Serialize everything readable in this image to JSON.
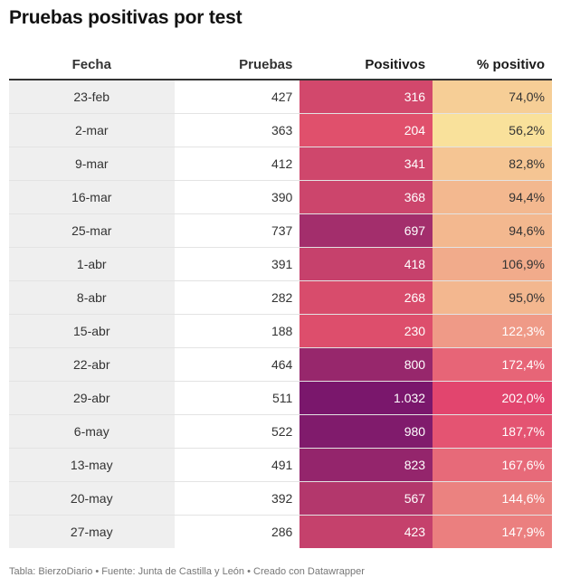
{
  "title": "Pruebas positivas por test",
  "source_note": "Tabla: BierzoDiario • Fuente: Junta de Castilla y León • Creado con Datawrapper",
  "colors": {
    "date_column_bg": "#efefef",
    "positivos_scale": [
      "#e0506c",
      "#7a176c"
    ],
    "pct_scale": [
      "#f9e19b",
      "#e2456e"
    ]
  },
  "chart_data": {
    "type": "table",
    "columns": [
      "Fecha",
      "Pruebas",
      "Positivos",
      "% positivo"
    ],
    "rows": [
      {
        "fecha": "23-feb",
        "pruebas": "427",
        "positivos": "316",
        "pct": "74,0%",
        "positivos_value": 316,
        "pct_value": 74.0
      },
      {
        "fecha": "2-mar",
        "pruebas": "363",
        "positivos": "204",
        "pct": "56,2%",
        "positivos_value": 204,
        "pct_value": 56.2
      },
      {
        "fecha": "9-mar",
        "pruebas": "412",
        "positivos": "341",
        "pct": "82,8%",
        "positivos_value": 341,
        "pct_value": 82.8
      },
      {
        "fecha": "16-mar",
        "pruebas": "390",
        "positivos": "368",
        "pct": "94,4%",
        "positivos_value": 368,
        "pct_value": 94.4
      },
      {
        "fecha": "25-mar",
        "pruebas": "737",
        "positivos": "697",
        "pct": "94,6%",
        "positivos_value": 697,
        "pct_value": 94.6
      },
      {
        "fecha": "1-abr",
        "pruebas": "391",
        "positivos": "418",
        "pct": "106,9%",
        "positivos_value": 418,
        "pct_value": 106.9
      },
      {
        "fecha": "8-abr",
        "pruebas": "282",
        "positivos": "268",
        "pct": "95,0%",
        "positivos_value": 268,
        "pct_value": 95.0
      },
      {
        "fecha": "15-abr",
        "pruebas": "188",
        "positivos": "230",
        "pct": "122,3%",
        "positivos_value": 230,
        "pct_value": 122.3
      },
      {
        "fecha": "22-abr",
        "pruebas": "464",
        "positivos": "800",
        "pct": "172,4%",
        "positivos_value": 800,
        "pct_value": 172.4
      },
      {
        "fecha": "29-abr",
        "pruebas": "511",
        "positivos": "1.032",
        "pct": "202,0%",
        "positivos_value": 1032,
        "pct_value": 202.0
      },
      {
        "fecha": "6-may",
        "pruebas": "522",
        "positivos": "980",
        "pct": "187,7%",
        "positivos_value": 980,
        "pct_value": 187.7
      },
      {
        "fecha": "13-may",
        "pruebas": "491",
        "positivos": "823",
        "pct": "167,6%",
        "positivos_value": 823,
        "pct_value": 167.6
      },
      {
        "fecha": "20-may",
        "pruebas": "392",
        "positivos": "567",
        "pct": "144,6%",
        "positivos_value": 567,
        "pct_value": 144.6
      },
      {
        "fecha": "27-may",
        "pruebas": "286",
        "positivos": "423",
        "pct": "147,9%",
        "positivos_value": 423,
        "pct_value": 147.9
      }
    ]
  }
}
